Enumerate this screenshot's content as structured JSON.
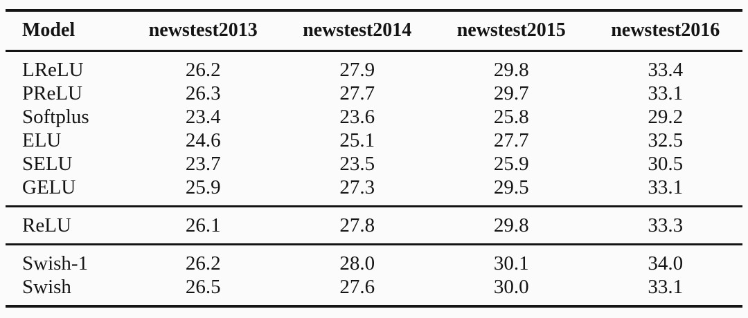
{
  "page": {
    "background": "#fbfbfb",
    "text_color": "#141414",
    "rule_color": "#141414"
  },
  "table": {
    "description": "BLEU score results table comparing activation functions on WMT newstest sets",
    "columns": [
      "Model",
      "newstest2013",
      "newstest2014",
      "newstest2015",
      "newstest2016"
    ],
    "groups": [
      {
        "rows": [
          {
            "model": "LReLU",
            "values": [
              "26.2",
              "27.9",
              "29.8",
              "33.4"
            ]
          },
          {
            "model": "PReLU",
            "values": [
              "26.3",
              "27.7",
              "29.7",
              "33.1"
            ]
          },
          {
            "model": "Softplus",
            "values": [
              "23.4",
              "23.6",
              "25.8",
              "29.2"
            ]
          },
          {
            "model": "ELU",
            "values": [
              "24.6",
              "25.1",
              "27.7",
              "32.5"
            ]
          },
          {
            "model": "SELU",
            "values": [
              "23.7",
              "23.5",
              "25.9",
              "30.5"
            ]
          },
          {
            "model": "GELU",
            "values": [
              "25.9",
              "27.3",
              "29.5",
              "33.1"
            ]
          }
        ]
      },
      {
        "rows": [
          {
            "model": "ReLU",
            "values": [
              "26.1",
              "27.8",
              "29.8",
              "33.3"
            ]
          }
        ]
      },
      {
        "rows": [
          {
            "model": "Swish-1",
            "values": [
              "26.2",
              "28.0",
              "30.1",
              "34.0"
            ]
          },
          {
            "model": "Swish",
            "values": [
              "26.5",
              "27.6",
              "30.0",
              "33.1"
            ]
          }
        ]
      }
    ]
  }
}
